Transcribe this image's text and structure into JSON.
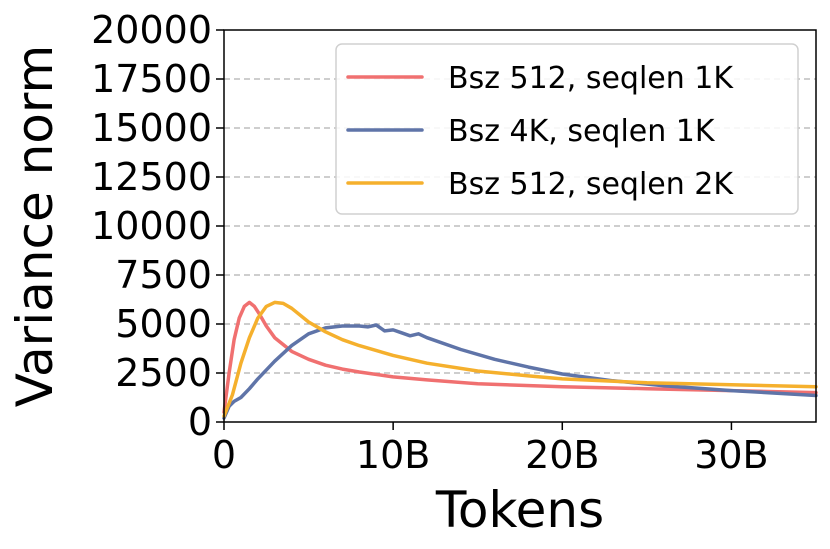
{
  "chart_data": {
    "type": "line",
    "title": "",
    "xlabel": "Tokens",
    "ylabel": "Variance norm",
    "xlim": [
      0,
      35
    ],
    "ylim": [
      0,
      20000
    ],
    "x_ticks": [
      0,
      10,
      20,
      30
    ],
    "x_tick_labels": [
      "0",
      "10B",
      "20B",
      "30B"
    ],
    "y_ticks": [
      0,
      2500,
      5000,
      7500,
      10000,
      12500,
      15000,
      17500,
      20000
    ],
    "y_tick_labels": [
      "0",
      "2500",
      "5000",
      "7500",
      "10000",
      "12500",
      "15000",
      "17500",
      "20000"
    ],
    "grid": "y-dashed",
    "legend_position": "top-right",
    "series": [
      {
        "name": "Bsz 512, seqlen 1K",
        "color": "#f07070",
        "x": [
          0,
          0.3,
          0.6,
          0.9,
          1.2,
          1.5,
          1.8,
          2.1,
          2.5,
          3,
          4,
          5,
          6,
          7,
          8,
          10,
          12,
          15,
          20,
          25,
          30,
          35
        ],
        "y": [
          500,
          2500,
          4200,
          5300,
          5900,
          6100,
          5900,
          5500,
          4900,
          4300,
          3600,
          3200,
          2900,
          2700,
          2550,
          2300,
          2150,
          1950,
          1800,
          1700,
          1600,
          1500
        ]
      },
      {
        "name": "Bsz 4K, seqlen 1K",
        "color": "#5f74a8",
        "x": [
          0,
          0.3,
          0.6,
          1,
          1.5,
          2,
          3,
          4,
          5,
          6,
          7,
          8,
          8.5,
          9,
          9.5,
          10,
          10.5,
          11,
          11.5,
          12,
          14,
          16,
          18,
          20,
          23,
          26,
          30,
          35
        ],
        "y": [
          200,
          800,
          1050,
          1250,
          1700,
          2200,
          3100,
          3900,
          4500,
          4800,
          4900,
          4900,
          4850,
          4950,
          4650,
          4700,
          4550,
          4400,
          4500,
          4300,
          3700,
          3200,
          2800,
          2450,
          2100,
          1850,
          1600,
          1350
        ]
      },
      {
        "name": "Bsz 512, seqlen 2K",
        "color": "#f5b02d",
        "x": [
          0,
          0.5,
          1,
          1.5,
          2,
          2.5,
          3,
          3.5,
          4,
          5,
          6,
          7,
          8,
          10,
          12,
          15,
          18,
          20,
          25,
          30,
          35
        ],
        "y": [
          300,
          1400,
          3000,
          4300,
          5300,
          5900,
          6100,
          6050,
          5800,
          5100,
          4600,
          4200,
          3900,
          3400,
          3000,
          2600,
          2350,
          2200,
          2000,
          1900,
          1800
        ]
      }
    ]
  }
}
